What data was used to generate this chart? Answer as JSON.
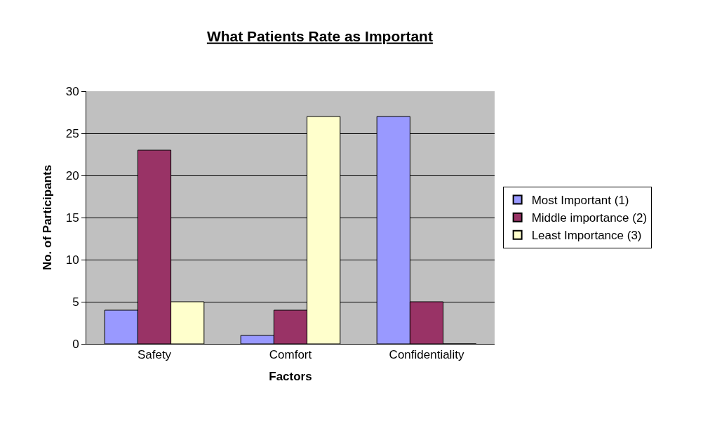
{
  "chart_data": {
    "type": "bar",
    "title": "What Patients Rate as Important",
    "xlabel": "Factors",
    "ylabel": "No. of Participants",
    "categories": [
      "Safety",
      "Comfort",
      "Confidentiality"
    ],
    "series": [
      {
        "name": "Most Important (1)",
        "color": "#9999ff",
        "values": [
          4,
          1,
          27
        ]
      },
      {
        "name": "Middle importance (2)",
        "color": "#993366",
        "values": [
          23,
          4,
          5
        ]
      },
      {
        "name": "Least Importance (3)",
        "color": "#ffffcc",
        "values": [
          5,
          27,
          0
        ]
      }
    ],
    "ylim": [
      0,
      30
    ],
    "yticks": [
      0,
      5,
      10,
      15,
      20,
      25,
      30
    ],
    "grid": "y",
    "legend": "right"
  }
}
